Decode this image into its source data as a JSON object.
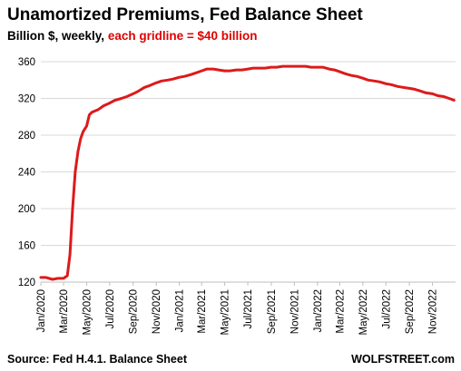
{
  "chart_data": {
    "type": "line",
    "title": "Unamortized  Premiums,  Fed Balance Sheet",
    "subtitle_part1": "Billion $, weekly,",
    "subtitle_part2": "each gridline = $40 billion",
    "subtitle_part2_color": "#e00000",
    "line_color": "#dd1a1a",
    "grid": true,
    "ylim": [
      120,
      360
    ],
    "yticks": [
      "120",
      "160",
      "200",
      "240",
      "280",
      "320",
      "360"
    ],
    "xticks": [
      "Jan/2020",
      "Mar/2020",
      "May/2020",
      "Jul/2020",
      "Sep/2020",
      "Nov/2020",
      "Jan/2021",
      "Mar/2021",
      "May/2021",
      "Jul/2021",
      "Sep/2021",
      "Nov/2021",
      "Jan/2022",
      "Mar/2022",
      "May/2022",
      "Jul/2022",
      "Sep/2022",
      "Nov/2022"
    ],
    "series": [
      {
        "x": [
          "2020-01-01",
          "2020-01-15",
          "2020-02-01",
          "2020-02-15",
          "2020-03-01",
          "2020-03-11",
          "2020-03-18",
          "2020-03-25",
          "2020-04-01",
          "2020-04-08",
          "2020-04-15",
          "2020-04-22",
          "2020-05-01",
          "2020-05-08",
          "2020-05-15",
          "2020-06-01",
          "2020-06-15",
          "2020-07-01",
          "2020-07-15",
          "2020-08-01",
          "2020-08-15",
          "2020-09-01",
          "2020-09-15",
          "2020-10-01",
          "2020-10-15",
          "2020-11-01",
          "2020-11-15",
          "2020-12-01",
          "2020-12-15",
          "2021-01-01",
          "2021-01-15",
          "2021-02-01",
          "2021-02-15",
          "2021-03-01",
          "2021-03-15",
          "2021-04-01",
          "2021-04-15",
          "2021-05-01",
          "2021-05-15",
          "2021-06-01",
          "2021-06-15",
          "2021-07-01",
          "2021-07-15",
          "2021-08-01",
          "2021-08-15",
          "2021-09-01",
          "2021-09-15",
          "2021-10-01",
          "2021-10-15",
          "2021-11-01",
          "2021-11-15",
          "2021-12-01",
          "2021-12-15",
          "2022-01-01",
          "2022-01-15",
          "2022-02-01",
          "2022-02-15",
          "2022-03-01",
          "2022-03-15",
          "2022-04-01",
          "2022-04-15",
          "2022-05-01",
          "2022-05-15",
          "2022-06-01",
          "2022-06-15",
          "2022-07-01",
          "2022-07-15",
          "2022-08-01",
          "2022-08-15",
          "2022-09-01",
          "2022-09-15",
          "2022-10-01",
          "2022-10-15",
          "2022-11-01",
          "2022-11-15",
          "2022-12-01",
          "2022-12-15",
          "2022-12-28"
        ],
        "values": [
          125,
          125,
          123,
          124,
          124,
          127,
          150,
          200,
          240,
          262,
          276,
          284,
          290,
          302,
          305,
          308,
          312,
          315,
          318,
          320,
          322,
          325,
          328,
          332,
          334,
          337,
          339,
          340,
          341,
          343,
          344,
          346,
          348,
          350,
          352,
          352,
          351,
          350,
          350,
          351,
          351,
          352,
          353,
          353,
          353,
          354,
          354,
          355,
          355,
          355,
          355,
          355,
          354,
          354,
          354,
          352,
          351,
          349,
          347,
          345,
          344,
          342,
          340,
          339,
          338,
          336,
          335,
          333,
          332,
          331,
          330,
          328,
          326,
          325,
          323,
          322,
          320,
          318
        ]
      }
    ]
  },
  "footer": {
    "source": "Source: Fed H.4.1. Balance Sheet",
    "brand": "WOLFSTREET.com"
  }
}
